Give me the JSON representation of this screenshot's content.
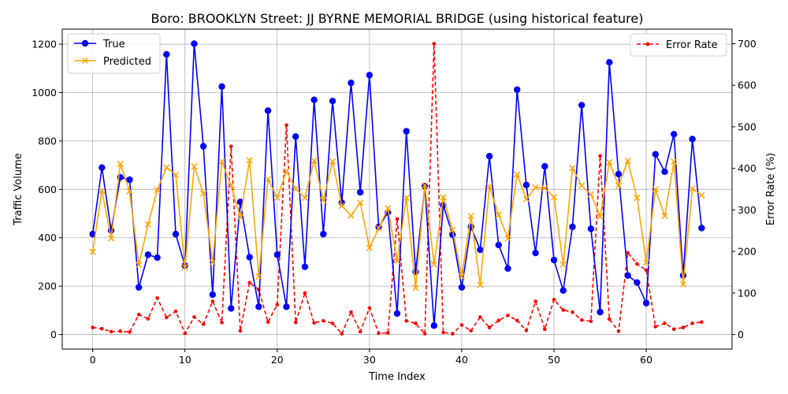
{
  "chart_data": {
    "type": "line",
    "title": "Boro: BROOKLYN Street: JJ BYRNE MEMORIAL BRIDGE (using historical feature)",
    "xlabel": "Time Index",
    "ylabel": "Traffic Volume",
    "y2label": "Error Rate (%)",
    "xlim": [
      -3.3,
      69.3
    ],
    "ylim": [
      -60,
      1262
    ],
    "y2lim": [
      -35,
      735
    ],
    "xticks": [
      "0",
      "10",
      "20",
      "30",
      "40",
      "50",
      "60"
    ],
    "yticks": [
      "0",
      "200",
      "400",
      "600",
      "800",
      "1000",
      "1200"
    ],
    "y2ticks": [
      "0",
      "100",
      "200",
      "300",
      "400",
      "500",
      "600",
      "700"
    ],
    "grid": true,
    "legend_left_placement": "upper left",
    "legend_right_placement": "upper right",
    "x": [
      0,
      1,
      2,
      3,
      4,
      5,
      6,
      7,
      8,
      9,
      10,
      11,
      12,
      13,
      14,
      15,
      16,
      17,
      18,
      19,
      20,
      21,
      22,
      23,
      24,
      25,
      26,
      27,
      28,
      29,
      30,
      31,
      32,
      33,
      34,
      35,
      36,
      37,
      38,
      39,
      40,
      41,
      42,
      43,
      44,
      45,
      46,
      47,
      48,
      49,
      50,
      51,
      52,
      53,
      54,
      55,
      56,
      57,
      58,
      59,
      60,
      61,
      62,
      63,
      64,
      65,
      66
    ],
    "series": [
      {
        "name": "True",
        "axis": "left",
        "color": "#0000ff",
        "marker": "circle",
        "values": [
          415,
          690,
          430,
          650,
          640,
          195,
          330,
          318,
          1158,
          415,
          285,
          1202,
          778,
          165,
          1025,
          108,
          548,
          320,
          115,
          925,
          330,
          115,
          818,
          280,
          970,
          415,
          965,
          545,
          1040,
          588,
          1072,
          445,
          505,
          87,
          840,
          260,
          613,
          37,
          535,
          413,
          195,
          445,
          350,
          737,
          370,
          273,
          1012,
          618,
          337,
          695,
          308,
          182,
          445,
          948,
          437,
          93,
          1125,
          663,
          244,
          215,
          130,
          745,
          673,
          828,
          244,
          808,
          440
        ]
      },
      {
        "name": "Predicted",
        "axis": "left",
        "color": "#ffa500",
        "marker": "x",
        "values": [
          342,
          595,
          398,
          705,
          592,
          288,
          455,
          598,
          690,
          660,
          278,
          695,
          583,
          298,
          715,
          615,
          485,
          720,
          240,
          642,
          565,
          675,
          602,
          565,
          718,
          555,
          715,
          532,
          492,
          545,
          358,
          440,
          522,
          305,
          565,
          193,
          617,
          290,
          567,
          433,
          240,
          490,
          205,
          612,
          495,
          398,
          662,
          560,
          608,
          605,
          568,
          290,
          688,
          615,
          580,
          488,
          712,
          615,
          718,
          565,
          297,
          600,
          490,
          715,
          208,
          603,
          575
        ]
      },
      {
        "name": "Error Rate",
        "axis": "right",
        "color": "#ff0000",
        "marker": "dot",
        "dashed": true,
        "values": [
          17,
          14,
          7,
          8,
          6,
          48,
          38,
          88,
          41,
          56,
          3,
          42,
          25,
          80,
          29,
          453,
          9,
          125,
          108,
          30,
          72,
          504,
          29,
          100,
          28,
          33,
          27,
          2,
          54,
          7,
          64,
          3,
          4,
          278,
          33,
          27,
          2,
          700,
          5,
          2,
          23,
          9,
          42,
          17,
          34,
          46,
          34,
          10,
          80,
          13,
          84,
          59,
          54,
          35,
          32,
          430,
          37,
          8,
          197,
          170,
          155,
          19,
          27,
          13,
          17,
          27,
          30
        ]
      }
    ]
  }
}
